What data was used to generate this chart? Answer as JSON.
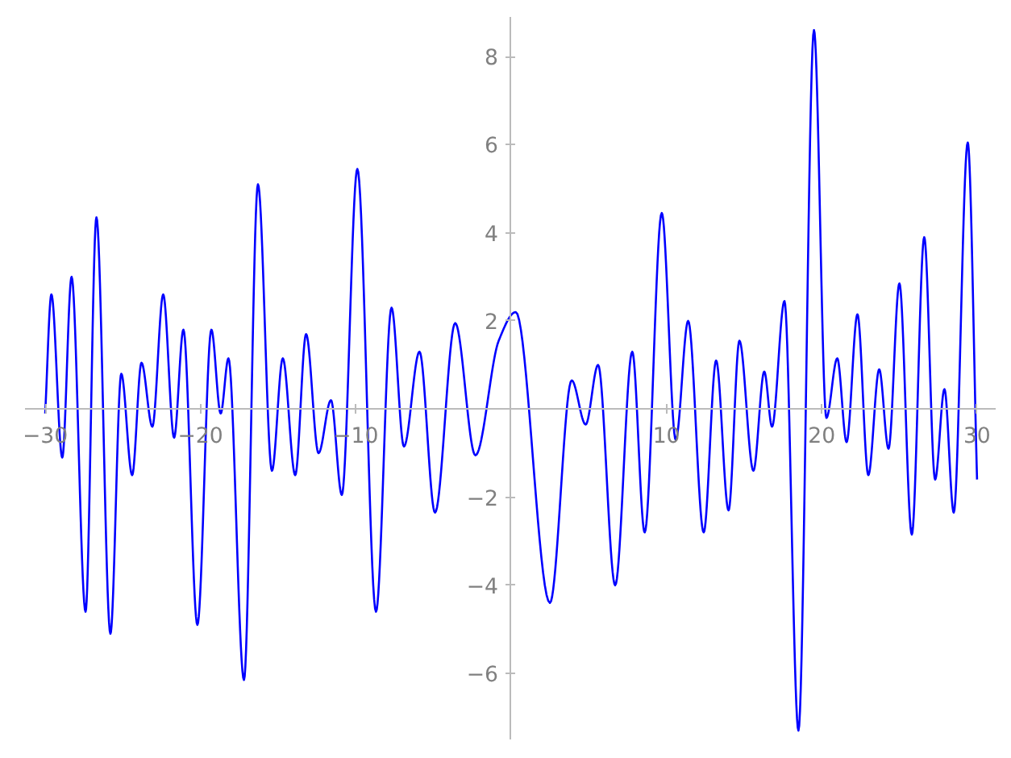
{
  "chart_data": {
    "type": "line",
    "color": "#0000ff",
    "line_style": "solid",
    "marker": "none",
    "grid": false,
    "x": [
      -30,
      -29.6,
      -28.9,
      -28.3,
      -27.4,
      -26.7,
      -25.8,
      -25.1,
      -24.4,
      -23.8,
      -23.1,
      -22.4,
      -21.7,
      -21.1,
      -20.2,
      -19.3,
      -18.7,
      -18.2,
      -17.2,
      -16.3,
      -15.4,
      -14.7,
      -13.9,
      -13.2,
      -12.4,
      -11.6,
      -10.9,
      -9.9,
      -8.7,
      -7.7,
      -6.9,
      -5.9,
      -4.9,
      -3.6,
      -2.3,
      -0.8,
      0.3,
      2.5,
      3.9,
      4.8,
      5.6,
      6.7,
      7.8,
      8.6,
      9.7,
      10.6,
      11.4,
      12.4,
      13.2,
      14.0,
      14.7,
      15.6,
      16.3,
      16.8,
      17.6,
      18.5,
      19.5,
      20.3,
      21.0,
      21.6,
      22.3,
      23.0,
      23.7,
      24.3,
      25.0,
      25.8,
      26.6,
      27.3,
      27.9,
      28.5,
      29.4,
      30
    ],
    "values": [
      -0.1,
      2.6,
      -1.1,
      3.0,
      -4.6,
      4.35,
      -5.1,
      0.8,
      -1.5,
      1.05,
      -0.4,
      2.6,
      -0.65,
      1.8,
      -4.9,
      1.8,
      -0.1,
      1.15,
      -6.15,
      5.1,
      -1.4,
      1.15,
      -1.5,
      1.7,
      -1.0,
      0.2,
      -1.95,
      5.45,
      -4.6,
      2.3,
      -0.85,
      1.3,
      -2.35,
      1.95,
      -1.05,
      1.55,
      2.2,
      -4.4,
      0.65,
      -0.35,
      1.0,
      -4.0,
      1.3,
      -2.8,
      4.45,
      -0.7,
      2.0,
      -2.8,
      1.1,
      -2.3,
      1.55,
      -1.4,
      0.85,
      -0.4,
      2.45,
      -7.3,
      8.6,
      -0.2,
      1.15,
      -0.75,
      2.15,
      -1.5,
      0.9,
      -0.9,
      2.85,
      -2.85,
      3.9,
      -1.6,
      0.45,
      -2.35,
      6.05,
      -1.6
    ],
    "xlim": [
      -31.3,
      31.2
    ],
    "ylim": [
      -7.5,
      8.9
    ],
    "xticks": [
      {
        "value": -30,
        "label": "−30"
      },
      {
        "value": -20,
        "label": "−20"
      },
      {
        "value": -10,
        "label": "−10"
      },
      10,
      20,
      30
    ],
    "yticks": [
      {
        "value": -6,
        "label": "−6"
      },
      {
        "value": -4,
        "label": "−4"
      },
      {
        "value": -2,
        "label": "−2"
      },
      2,
      4,
      6,
      8
    ]
  }
}
